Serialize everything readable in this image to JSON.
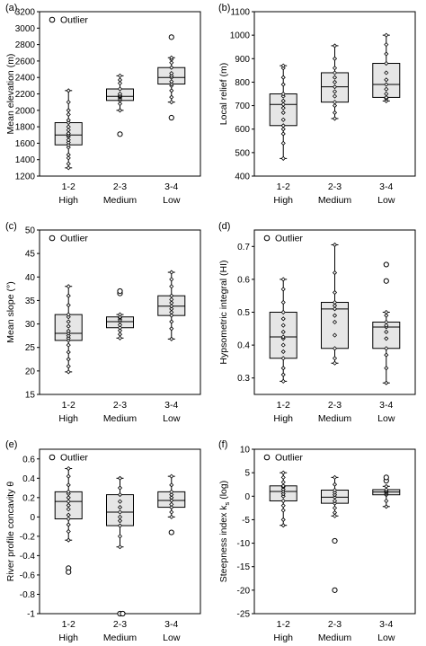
{
  "chart_data": [
    {
      "panel_label": "(a)",
      "type": "box",
      "ylabel": "Mean elevation (m)",
      "ylim": [
        1200,
        3200
      ],
      "yticks": [
        1200,
        1400,
        1600,
        1800,
        2000,
        2200,
        2400,
        2600,
        2800,
        3000,
        3200
      ],
      "categories": [
        {
          "line1": "1-2",
          "line2": "High"
        },
        {
          "line1": "2-3",
          "line2": "Medium"
        },
        {
          "line1": "3-4",
          "line2": "Low"
        }
      ],
      "legend": {
        "label": "Outlier",
        "position": "top-left"
      },
      "boxes": [
        {
          "min": 1300,
          "q1": 1580,
          "median": 1700,
          "q3": 1850,
          "max": 2240,
          "points": [
            1300,
            1350,
            1420,
            1460,
            1550,
            1580,
            1610,
            1640,
            1680,
            1700,
            1720,
            1760,
            1800,
            1850,
            1880,
            1950,
            2000,
            2100,
            2240
          ],
          "outliers": []
        },
        {
          "min": 2000,
          "q1": 2120,
          "median": 2170,
          "q3": 2260,
          "max": 2420,
          "points": [
            2000,
            2080,
            2120,
            2140,
            2160,
            2170,
            2180,
            2200,
            2260,
            2330,
            2370,
            2420
          ],
          "outliers": [
            1710
          ]
        },
        {
          "min": 2100,
          "q1": 2320,
          "median": 2400,
          "q3": 2520,
          "max": 2640,
          "points": [
            2100,
            2160,
            2240,
            2300,
            2320,
            2350,
            2400,
            2420,
            2450,
            2520,
            2580,
            2620,
            2640
          ],
          "outliers": [
            2890,
            1910
          ]
        }
      ]
    },
    {
      "panel_label": "(b)",
      "type": "box",
      "ylabel": "Local relief (m)",
      "ylim": [
        400,
        1100
      ],
      "yticks": [
        400,
        500,
        600,
        700,
        800,
        900,
        1000,
        1100
      ],
      "categories": [
        {
          "line1": "1-2",
          "line2": "High"
        },
        {
          "line1": "2-3",
          "line2": "Medium"
        },
        {
          "line1": "3-4",
          "line2": "Low"
        }
      ],
      "boxes": [
        {
          "min": 475,
          "q1": 615,
          "median": 705,
          "q3": 750,
          "max": 870,
          "points": [
            475,
            540,
            580,
            600,
            615,
            640,
            670,
            690,
            705,
            720,
            740,
            750,
            790,
            820,
            860,
            870
          ],
          "outliers": []
        },
        {
          "min": 645,
          "q1": 715,
          "median": 780,
          "q3": 840,
          "max": 955,
          "points": [
            645,
            670,
            700,
            715,
            740,
            760,
            780,
            800,
            820,
            840,
            860,
            900,
            955
          ],
          "outliers": []
        },
        {
          "min": 720,
          "q1": 735,
          "median": 790,
          "q3": 880,
          "max": 1000,
          "points": [
            720,
            730,
            735,
            750,
            770,
            790,
            810,
            840,
            880,
            920,
            960,
            1000
          ],
          "outliers": []
        }
      ]
    },
    {
      "panel_label": "(c)",
      "type": "box",
      "ylabel": "Mean slope (°)",
      "ylim": [
        15,
        50
      ],
      "yticks": [
        15,
        20,
        25,
        30,
        35,
        40,
        45,
        50
      ],
      "categories": [
        {
          "line1": "1-2",
          "line2": "High"
        },
        {
          "line1": "2-3",
          "line2": "Medium"
        },
        {
          "line1": "3-4",
          "line2": "Low"
        }
      ],
      "legend": {
        "label": "Outlier",
        "position": "top-left"
      },
      "boxes": [
        {
          "min": 19.8,
          "q1": 26.5,
          "median": 28,
          "q3": 32,
          "max": 38,
          "points": [
            19.8,
            21,
            22.5,
            24,
            25.5,
            26.5,
            27,
            27.5,
            28,
            28.5,
            29.5,
            30.5,
            31.5,
            32,
            34,
            36,
            38
          ],
          "outliers": []
        },
        {
          "min": 27,
          "q1": 29.2,
          "median": 30.5,
          "q3": 31.5,
          "max": 32,
          "points": [
            27,
            27.8,
            28.6,
            29.2,
            29.8,
            30.5,
            30.9,
            31.3,
            31.5,
            32
          ],
          "outliers": [
            36.5,
            37
          ]
        },
        {
          "min": 26.8,
          "q1": 31.8,
          "median": 33.8,
          "q3": 36,
          "max": 41,
          "points": [
            26.8,
            29,
            30.5,
            31.8,
            32.5,
            33.2,
            33.8,
            34.5,
            35.2,
            36,
            38,
            39.5,
            41
          ],
          "outliers": []
        }
      ]
    },
    {
      "panel_label": "(d)",
      "type": "box",
      "ylabel": "Hypsometric integral (HI)",
      "ylim": [
        0.25,
        0.75
      ],
      "yticks": [
        0.3,
        0.4,
        0.5,
        0.6,
        0.7
      ],
      "categories": [
        {
          "line1": "1-2",
          "line2": "High"
        },
        {
          "line1": "2-3",
          "line2": "Medium"
        },
        {
          "line1": "3-4",
          "line2": "Low"
        }
      ],
      "legend": {
        "label": "Outlier",
        "position": "top-left"
      },
      "boxes": [
        {
          "min": 0.29,
          "q1": 0.36,
          "median": 0.425,
          "q3": 0.5,
          "max": 0.6,
          "points": [
            0.29,
            0.31,
            0.33,
            0.36,
            0.38,
            0.4,
            0.42,
            0.425,
            0.44,
            0.46,
            0.48,
            0.5,
            0.53,
            0.57,
            0.6
          ],
          "outliers": []
        },
        {
          "min": 0.345,
          "q1": 0.39,
          "median": 0.51,
          "q3": 0.53,
          "max": 0.705,
          "points": [
            0.345,
            0.36,
            0.39,
            0.43,
            0.47,
            0.49,
            0.51,
            0.52,
            0.53,
            0.56,
            0.62,
            0.705
          ],
          "outliers": []
        },
        {
          "min": 0.285,
          "q1": 0.39,
          "median": 0.455,
          "q3": 0.47,
          "max": 0.5,
          "points": [
            0.285,
            0.33,
            0.37,
            0.39,
            0.42,
            0.44,
            0.455,
            0.46,
            0.47,
            0.49,
            0.5
          ],
          "outliers": [
            0.595,
            0.645
          ]
        }
      ]
    },
    {
      "panel_label": "(e)",
      "type": "box",
      "ylabel": "River profile concavity θ",
      "ylim": [
        -1.0,
        0.7
      ],
      "yticks": [
        -1.0,
        -0.8,
        -0.6,
        -0.4,
        -0.2,
        0,
        0.2,
        0.4,
        0.6
      ],
      "categories": [
        {
          "line1": "1-2",
          "line2": "High"
        },
        {
          "line1": "2-3",
          "line2": "Medium"
        },
        {
          "line1": "3-4",
          "line2": "Low"
        }
      ],
      "legend": {
        "label": "Outlier",
        "position": "top-left"
      },
      "boxes": [
        {
          "min": -0.24,
          "q1": -0.02,
          "median": 0.16,
          "q3": 0.26,
          "max": 0.5,
          "points": [
            -0.24,
            -0.15,
            -0.08,
            -0.02,
            0.02,
            0.08,
            0.12,
            0.16,
            0.2,
            0.24,
            0.26,
            0.33,
            0.42,
            0.5
          ],
          "outliers": [
            -0.53,
            -0.57
          ]
        },
        {
          "min": -0.31,
          "q1": -0.09,
          "median": 0.05,
          "q3": 0.23,
          "max": 0.4,
          "points": [
            -0.31,
            -0.2,
            -0.09,
            -0.04,
            0.0,
            0.05,
            0.1,
            0.16,
            0.23,
            0.3,
            0.4
          ],
          "outliers": [
            -1.0,
            -1.0
          ]
        },
        {
          "min": 0.0,
          "q1": 0.1,
          "median": 0.17,
          "q3": 0.26,
          "max": 0.42,
          "points": [
            0.0,
            0.05,
            0.1,
            0.13,
            0.17,
            0.2,
            0.23,
            0.26,
            0.33,
            0.42
          ],
          "outliers": [
            -0.16
          ]
        }
      ]
    },
    {
      "panel_label": "(f)",
      "type": "box",
      "ylabel_main": "Steepness index k",
      "ylabel_subscript": "s",
      "ylabel_suffix": " (log)",
      "ylim": [
        -25,
        10
      ],
      "yticks": [
        -25,
        -20,
        -15,
        -10,
        -5,
        0,
        5,
        10
      ],
      "categories": [
        {
          "line1": "1-2",
          "line2": "High"
        },
        {
          "line1": "2-3",
          "line2": "Medium"
        },
        {
          "line1": "3-4",
          "line2": "Low"
        }
      ],
      "legend": {
        "label": "Outlier",
        "position": "top-left"
      },
      "boxes": [
        {
          "min": -6.2,
          "q1": -1.0,
          "median": 1.0,
          "q3": 2.2,
          "max": 5.0,
          "points": [
            -6.2,
            -5,
            -3,
            -2,
            -1,
            0,
            0.5,
            1,
            1.5,
            2,
            2.2,
            3,
            4,
            5
          ],
          "outliers": []
        },
        {
          "min": -4.2,
          "q1": -1.5,
          "median": -0.2,
          "q3": 1.3,
          "max": 4.0,
          "points": [
            -4.2,
            -3.5,
            -2.5,
            -1.5,
            -1,
            -0.2,
            0.3,
            0.8,
            1.3,
            2.5,
            4.0
          ],
          "outliers": [
            -9.5,
            -20
          ]
        },
        {
          "min": -2.2,
          "q1": 0.3,
          "median": 0.9,
          "q3": 1.4,
          "max": 2.1,
          "points": [
            -2.2,
            -1,
            0.3,
            0.6,
            0.9,
            1.1,
            1.4,
            2.1
          ],
          "outliers": [
            3.3,
            4.0
          ]
        }
      ]
    }
  ]
}
